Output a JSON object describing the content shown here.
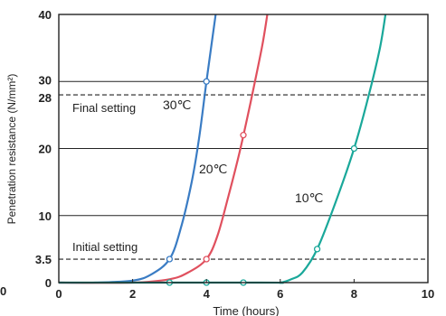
{
  "chart_data": {
    "type": "line",
    "title": "",
    "xlabel": "Time (hours)",
    "ylabel": "Penetration resistance (N/mm²)",
    "xlim": [
      0,
      10
    ],
    "ylim": [
      0,
      40
    ],
    "x_ticks": [
      "0",
      "2",
      "4",
      "6",
      "8",
      "10"
    ],
    "y_ticks": [
      "0",
      "3.5",
      "10",
      "20",
      "28",
      "30",
      "40"
    ],
    "grid": "horizontal lines at 10, 20, 30",
    "reference_lines": [
      {
        "name": "Initial setting",
        "y": 3.5,
        "style": "dashed"
      },
      {
        "name": "Final setting",
        "y": 28,
        "style": "dashed"
      }
    ],
    "stray_label": "0",
    "series": [
      {
        "name": "30℃",
        "color": "#3a7cc4",
        "x": [
          0,
          1,
          2,
          2.5,
          3,
          3.3,
          3.6,
          3.8,
          4.0,
          4.15,
          4.25
        ],
        "y": [
          0,
          0,
          0.3,
          1.2,
          3.5,
          8,
          15,
          21.5,
          30,
          36,
          40
        ],
        "markers": [
          [
            3,
            3.5
          ],
          [
            4,
            30
          ]
        ]
      },
      {
        "name": "20℃",
        "color": "#e0505e",
        "x": [
          0,
          2,
          3,
          3.5,
          4,
          4.3,
          4.6,
          4.9,
          5.2,
          5.5,
          5.65
        ],
        "y": [
          0,
          0,
          0.5,
          1.5,
          3.5,
          7,
          13,
          19.5,
          27,
          35,
          40
        ],
        "markers": [
          [
            4,
            3.5
          ],
          [
            5,
            22
          ]
        ]
      },
      {
        "name": "10℃",
        "color": "#1aa89a",
        "x": [
          0,
          5.5,
          6,
          6.3,
          6.6,
          7.0,
          7.5,
          8.0,
          8.4,
          8.7,
          8.85
        ],
        "y": [
          0,
          0,
          0,
          0.5,
          1.5,
          5,
          12,
          20,
          28,
          35,
          40
        ],
        "markers": [
          [
            3,
            0
          ],
          [
            4,
            0
          ],
          [
            5,
            0
          ],
          [
            7,
            5
          ],
          [
            8,
            20
          ]
        ]
      }
    ]
  }
}
